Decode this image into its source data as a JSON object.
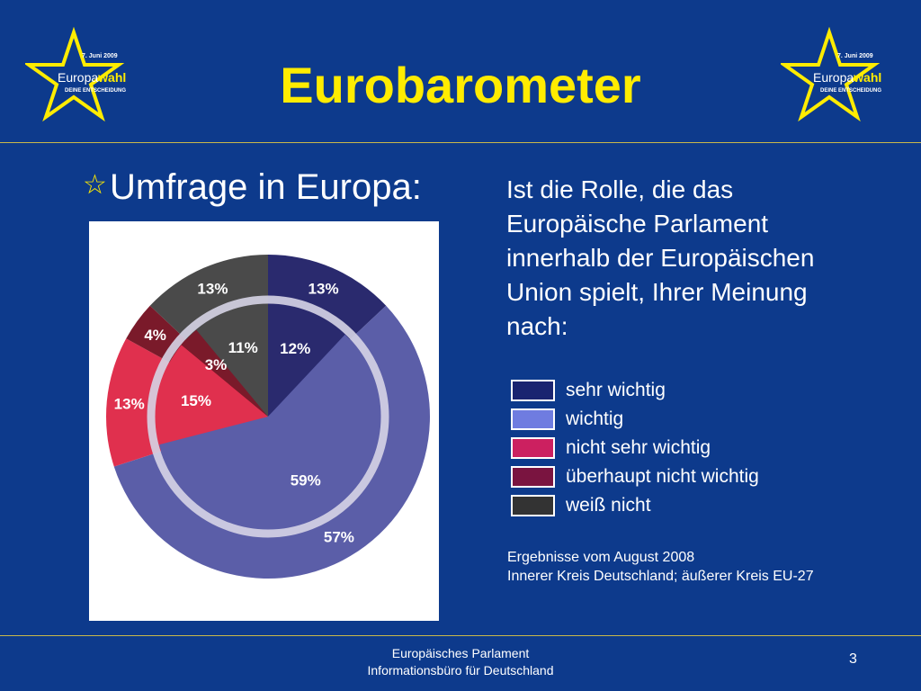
{
  "slide": {
    "title": "Eurobarometer",
    "bullet": "Umfrage in Europa:",
    "question": "Ist die Rolle, die das Europäische Parlament innerhalb der Europäischen Union spielt, Ihrer Meinung nach:",
    "note_line1": "Ergebnisse vom August 2008",
    "note_line2": "Innerer Kreis Deutschland; äußerer Kreis EU-27",
    "footer_line1": "Europäisches Parlament",
    "footer_line2": "Informationsbüro für Deutschland",
    "page_number": "3"
  },
  "logo": {
    "date": "7. Juni 2009",
    "word_part1": "Europa",
    "word_part2": "wahl",
    "tagline": "DEINE ENTSCHEIDUNG"
  },
  "colors": {
    "background": "#0d3a8c",
    "title": "#ffec00",
    "sehr_wichtig": "#2a2a6e",
    "wichtig": "#5b5ea8",
    "nicht_sehr_wichtig": "#e0304e",
    "ueberhaupt_nicht_wichtig": "#7a1a2a",
    "weiss_nicht": "#4a4a4a"
  },
  "chart_data": {
    "type": "pie",
    "categories": [
      "sehr wichtig",
      "wichtig",
      "nicht sehr wichtig",
      "überhaupt nicht wichtig",
      "weiß nicht"
    ],
    "legend_swatches": [
      "#1a2470",
      "#6f7ce0",
      "#cc2060",
      "#7a1440",
      "#333333"
    ],
    "series": [
      {
        "values": [
          12,
          59,
          15,
          3,
          11
        ],
        "labels": [
          "12%",
          "59%",
          "15%",
          "3%",
          "11%"
        ]
      },
      {
        "values": [
          13,
          57,
          13,
          4,
          13
        ],
        "labels": [
          "13%",
          "57%",
          "13%",
          "4%",
          "13%"
        ]
      }
    ]
  }
}
